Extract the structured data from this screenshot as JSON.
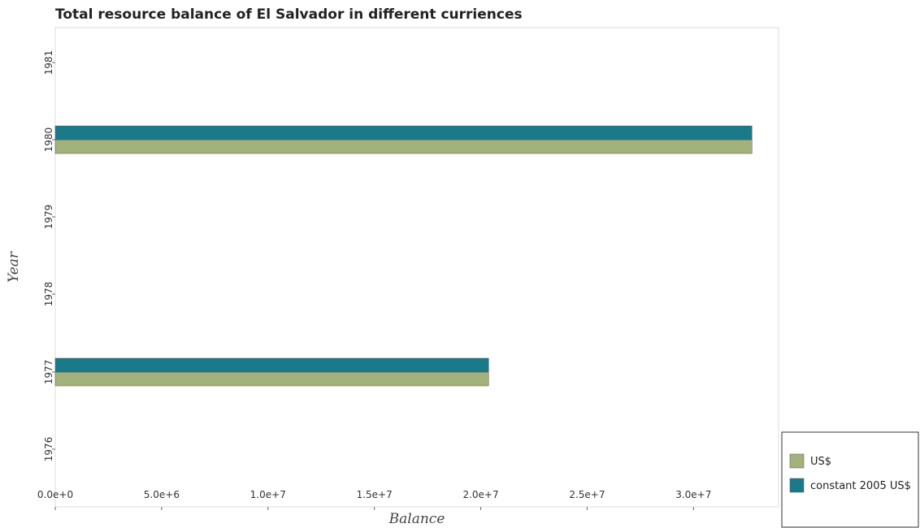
{
  "chart_data": {
    "type": "bar",
    "orientation": "horizontal",
    "title": "Total resource balance of El Salvador in different curriences",
    "xlabel": "Balance",
    "ylabel": "Year",
    "categories": [
      "1976",
      "1977",
      "1978",
      "1979",
      "1980",
      "1981"
    ],
    "series": [
      {
        "name": "US$",
        "color": "#a3b27a",
        "values": [
          0,
          20370000,
          0,
          0,
          32750000,
          0
        ]
      },
      {
        "name": "constant 2005 US$",
        "color": "#1a7a8a",
        "values": [
          0,
          20370000,
          0,
          0,
          32750000,
          0
        ]
      }
    ],
    "xlim": [
      0,
      34000000
    ],
    "xticks": [
      0,
      5000000,
      10000000,
      15000000,
      20000000,
      25000000,
      30000000
    ],
    "xtick_labels": [
      "0.0e+0",
      "5.0e+6",
      "1.0e+7",
      "1.5e+7",
      "2.0e+7",
      "2.5e+7",
      "3.0e+7"
    ],
    "grid": false,
    "legend_position": "bottom-right"
  }
}
